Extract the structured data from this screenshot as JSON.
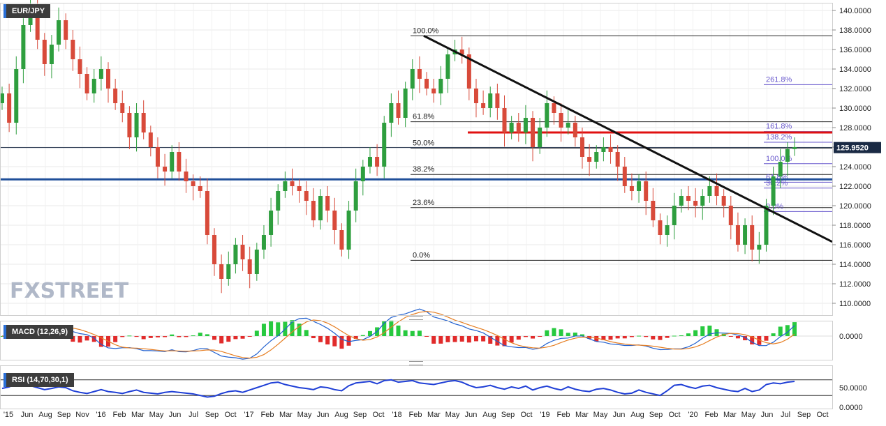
{
  "chart_data": [
    {
      "type": "candlestick",
      "title": "EUR/JPY",
      "ylim": [
        109,
        141
      ],
      "y_ticks": [
        "140.0000",
        "138.0000",
        "136.0000",
        "134.0000",
        "132.0000",
        "130.0000",
        "128.0000",
        "126.0000",
        "124.0000",
        "122.0000",
        "120.0000",
        "118.0000",
        "116.0000",
        "114.0000",
        "112.0000",
        "110.0000"
      ],
      "x_ticks": [
        "'15",
        "Jun",
        "Aug",
        "Sep",
        "Nov",
        "'16",
        "Feb",
        "Mar",
        "May",
        "Jun",
        "Jul",
        "Sep",
        "Oct",
        "'17",
        "Feb",
        "Mar",
        "May",
        "Jun",
        "Aug",
        "Sep",
        "Oct",
        "'18",
        "Feb",
        "Mar",
        "May",
        "Jun",
        "Aug",
        "Sep",
        "Oct",
        "'19",
        "Feb",
        "Mar",
        "May",
        "Jun",
        "Aug",
        "Sep",
        "Oct",
        "'20",
        "Feb",
        "Mar",
        "May",
        "Jun",
        "Jul",
        "Sep",
        "Oct"
      ],
      "last_price": "125.9520",
      "colors": {
        "up": "#2e9e3e",
        "down": "#d84a3a",
        "trendline": "#111111",
        "support": "#1f4f99",
        "resistance": "#e01010",
        "fib_ext": "#6a5acd",
        "last_price_bg": "#1a2a44"
      },
      "fib_retracement_labels": [
        "100.0%",
        "61.8%",
        "50.0%",
        "38.2%",
        "23.6%",
        "0.0%"
      ],
      "fib_retracement_levels": [
        137.4,
        128.6,
        125.9,
        123.2,
        119.8,
        114.4
      ],
      "fib_extension_labels": [
        "261.8%",
        "161.8%",
        "138.2%",
        "100.0%",
        "61.8%",
        "38.2%",
        "0.0%"
      ],
      "fib_extension_levels": [
        132.4,
        127.6,
        126.5,
        124.3,
        122.4,
        121.8,
        119.4
      ],
      "support_level": 122.7,
      "resistance_level": 127.5,
      "trendline": {
        "from": [
          "Jan 2018",
          137.4
        ],
        "to": [
          "Oct 2020",
          116.3
        ]
      },
      "watermark": "FXSTREET",
      "series": [
        {
          "name": "EUR/JPY",
          "close": [
            131.5,
            128.5,
            134.0,
            138.5,
            140.2,
            137.0,
            134.5,
            136.5,
            139.0,
            137.0,
            135.0,
            133.5,
            131.5,
            133.0,
            134.0,
            132.0,
            130.5,
            129.5,
            127.0,
            129.5,
            127.5,
            126.0,
            124.0,
            123.5,
            125.5,
            123.5,
            122.5,
            122.0,
            121.5,
            117.0,
            114.0,
            112.5,
            114.0,
            116.0,
            114.5,
            113.0,
            115.5,
            117.0,
            119.5,
            121.5,
            122.5,
            122.0,
            121.5,
            120.5,
            118.5,
            121.0,
            119.5,
            117.5,
            115.5,
            119.5,
            122.5,
            124.0,
            125.0,
            124.0,
            128.5,
            130.5,
            129.0,
            132.0,
            134.0,
            133.0,
            132.0,
            131.5,
            133.0,
            135.5,
            136.0,
            135.5,
            132.0,
            130.5,
            130.0,
            131.5,
            130.0,
            127.5,
            128.5,
            127.5,
            129.0,
            126.0,
            128.0,
            130.5,
            129.5,
            128.0,
            128.5,
            127.0,
            125.0,
            124.5,
            125.5,
            126.0,
            125.5,
            124.0,
            122.0,
            121.5,
            122.5,
            120.5,
            118.5,
            117.0,
            118.0,
            120.0,
            121.0,
            120.5,
            120.0,
            121.0,
            122.0,
            121.0,
            120.0,
            118.0,
            116.0,
            118.0,
            115.5,
            116.0,
            120.0,
            123.0,
            124.5,
            125.8,
            126.0
          ]
        },
        {
          "name": "MACD (12,26,9)",
          "y_ticks": [
            "0.0000"
          ],
          "ylim": [
            -3.5,
            3
          ]
        },
        {
          "name": "RSI (14,70,30,1)",
          "y_ticks": [
            "50.0000",
            "0.0000"
          ],
          "ylim": [
            0,
            100
          ],
          "levels": [
            70,
            30
          ],
          "values": [
            48,
            52,
            60,
            62,
            55,
            50,
            45,
            48,
            52,
            50,
            42,
            38,
            35,
            40,
            45,
            40,
            38,
            35,
            40,
            44,
            38,
            36,
            34,
            38,
            40,
            38,
            36,
            34,
            30,
            26,
            28,
            35,
            40,
            42,
            38,
            44,
            50,
            56,
            62,
            64,
            58,
            54,
            50,
            48,
            45,
            52,
            50,
            45,
            42,
            55,
            62,
            64,
            66,
            60,
            68,
            70,
            64,
            66,
            68,
            62,
            60,
            58,
            62,
            66,
            68,
            64,
            56,
            50,
            52,
            56,
            50,
            46,
            52,
            48,
            54,
            44,
            50,
            54,
            48,
            44,
            52,
            46,
            42,
            40,
            46,
            48,
            44,
            38,
            34,
            36,
            44,
            38,
            34,
            30,
            42,
            56,
            58,
            52,
            48,
            54,
            56,
            50,
            46,
            42,
            40,
            48,
            40,
            44,
            58,
            62,
            60,
            64,
            66
          ]
        }
      ]
    }
  ]
}
